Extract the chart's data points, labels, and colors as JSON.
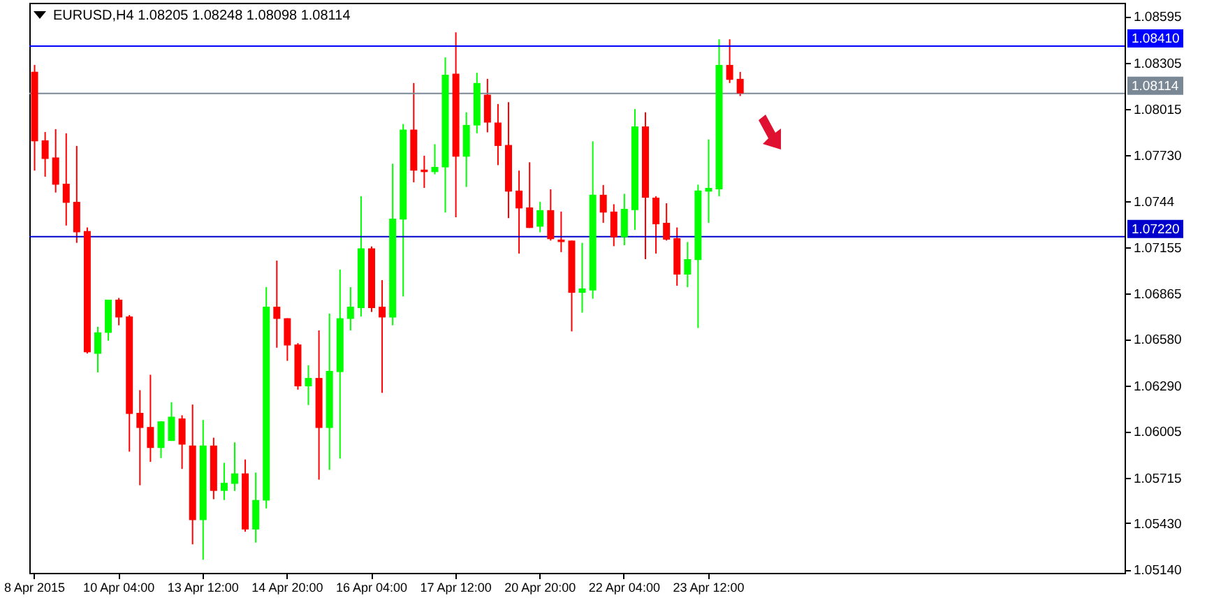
{
  "chart_data": {
    "type": "candlestick",
    "title": "EURUSD,H4  1.08205 1.08248 1.08098 1.08114",
    "categories": [
      "8 Apr 2015",
      null,
      null,
      null,
      null,
      null,
      null,
      null,
      "10 Apr 04:00",
      null,
      null,
      null,
      null,
      null,
      null,
      null,
      "13 Apr 12:00",
      null,
      null,
      null,
      null,
      null,
      null,
      null,
      "14 Apr 20:00",
      null,
      null,
      null,
      null,
      null,
      null,
      null,
      "16 Apr 04:00",
      null,
      null,
      null,
      null,
      null,
      null,
      null,
      "17 Apr 12:00",
      null,
      null,
      null,
      null,
      null,
      null,
      null,
      "20 Apr 20:00",
      null,
      null,
      null,
      null,
      null,
      null,
      null,
      "22 Apr 04:00",
      null,
      null,
      null,
      null,
      null,
      null,
      null,
      "23 Apr 12:00",
      null,
      null,
      null,
      null,
      null,
      null,
      null,
      null,
      null,
      null,
      null,
      null,
      null,
      null,
      null,
      null,
      null,
      null,
      null,
      null,
      null,
      null,
      null,
      null,
      null,
      null,
      null,
      null,
      null,
      null,
      null,
      null,
      null,
      null,
      null,
      null,
      null,
      null,
      null
    ],
    "ohlc": [
      [
        1.08249,
        1.08292,
        1.07632,
        1.07815
      ],
      [
        1.07821,
        1.07873,
        1.07594,
        1.07705
      ],
      [
        1.07714,
        1.07891,
        1.07495,
        1.07544
      ],
      [
        1.0755,
        1.07865,
        1.07289,
        1.07431
      ],
      [
        1.07437,
        1.07786,
        1.07181,
        1.07247
      ],
      [
        1.07254,
        1.07277,
        1.0649,
        1.06497
      ],
      [
        1.06488,
        1.06657,
        1.06372,
        1.06622
      ],
      [
        1.06619,
        1.06826,
        1.0657,
        1.06826
      ],
      [
        1.06826,
        1.06837,
        1.06666,
        1.06715
      ],
      [
        1.06721,
        1.0673,
        1.05877,
        1.06113
      ],
      [
        1.06119,
        1.06261,
        1.05667,
        1.06025
      ],
      [
        1.06031,
        1.06357,
        1.05813,
        1.059
      ],
      [
        1.059,
        1.06066,
        1.05837,
        1.06066
      ],
      [
        1.05944,
        1.06186,
        1.05944,
        1.06095
      ],
      [
        1.06084,
        1.06104,
        1.05769,
        1.05921
      ],
      [
        1.05915,
        1.06171,
        1.05298,
        1.05449
      ],
      [
        1.05449,
        1.06075,
        1.05202,
        1.05915
      ],
      [
        1.05915,
        1.05964,
        1.0558,
        1.05632
      ],
      [
        1.05632,
        1.05807,
        1.05575,
        1.05682
      ],
      [
        1.05676,
        1.05935,
        1.05632,
        1.05741
      ],
      [
        1.05741,
        1.05828,
        1.05377,
        1.05391
      ],
      [
        1.05391,
        1.05746,
        1.05309,
        1.05575
      ],
      [
        1.05571,
        1.06904,
        1.05522,
        1.06782
      ],
      [
        1.06782,
        1.0707,
        1.06526,
        1.06706
      ],
      [
        1.0671,
        1.0671,
        1.06444,
        1.0654
      ],
      [
        1.06546,
        1.06555,
        1.06264,
        1.06285
      ],
      [
        1.06285,
        1.06416,
        1.06168,
        1.06337
      ],
      [
        1.06337,
        1.06634,
        1.05702,
        1.06025
      ],
      [
        1.06025,
        1.06739,
        1.05763,
        1.06381
      ],
      [
        1.06374,
        1.07015,
        1.05833,
        1.0671
      ],
      [
        1.06706,
        1.06904,
        1.06634,
        1.06782
      ],
      [
        1.06773,
        1.07472,
        1.06721,
        1.07146
      ],
      [
        1.07146,
        1.07158,
        1.0675,
        1.06773
      ],
      [
        1.06782,
        1.06948,
        1.06244,
        1.06715
      ],
      [
        1.06715,
        1.07675,
        1.06666,
        1.07332
      ],
      [
        1.07326,
        1.07923,
        1.06846,
        1.07888
      ],
      [
        1.07888,
        1.08179,
        1.07559,
        1.07632
      ],
      [
        1.07638,
        1.07725,
        1.07524,
        1.07623
      ],
      [
        1.07623,
        1.07797,
        1.07609,
        1.07655
      ],
      [
        1.07653,
        1.08339,
        1.0737,
        1.08231
      ],
      [
        1.08237,
        1.08496,
        1.07341,
        1.07719
      ],
      [
        1.07719,
        1.07996,
        1.0753,
        1.07917
      ],
      [
        1.07914,
        1.08243,
        1.07865,
        1.08179
      ],
      [
        1.08106,
        1.08205,
        1.07871,
        1.07932
      ],
      [
        1.07932,
        1.08048,
        1.07666,
        1.07786
      ],
      [
        1.07792,
        1.08059,
        1.07335,
        1.07501
      ],
      [
        1.07507,
        1.07632,
        1.07114,
        1.07396
      ],
      [
        1.07402,
        1.07684,
        1.07274,
        1.07274
      ],
      [
        1.07282,
        1.07437,
        1.07247,
        1.07385
      ],
      [
        1.07385,
        1.07515,
        1.07195,
        1.07204
      ],
      [
        1.07201,
        1.07376,
        1.07123,
        1.07186
      ],
      [
        1.07195,
        1.07195,
        1.06628,
        1.06869
      ],
      [
        1.06869,
        1.07181,
        1.06745,
        1.06896
      ],
      [
        1.06884,
        1.07815,
        1.06832,
        1.07481
      ],
      [
        1.07481,
        1.07542,
        1.07306,
        1.0737
      ],
      [
        1.07376,
        1.07422,
        1.0716,
        1.07216
      ],
      [
        1.07216,
        1.07487,
        1.07166,
        1.07393
      ],
      [
        1.07385,
        1.08016,
        1.07262,
        1.07908
      ],
      [
        1.07908,
        1.07996,
        1.07079,
        1.07463
      ],
      [
        1.07463,
        1.07472,
        1.07114,
        1.07297
      ],
      [
        1.07306,
        1.07428,
        1.07195,
        1.07201
      ],
      [
        1.0721,
        1.07277,
        1.06913,
        1.06983
      ],
      [
        1.06983,
        1.07186,
        1.06904,
        1.07079
      ],
      [
        1.07073,
        1.07544,
        1.06649,
        1.07507
      ],
      [
        1.07501,
        1.07827,
        1.07306,
        1.07524
      ],
      [
        1.07515,
        1.08452,
        1.07472,
        1.08292
      ],
      [
        1.08292,
        1.08452,
        1.08179,
        1.08199
      ],
      [
        1.08205,
        1.08248,
        1.08098,
        1.08114
      ],
      null,
      null,
      null,
      null,
      null,
      null,
      null,
      null,
      null,
      null,
      null,
      null,
      null,
      null,
      null,
      null,
      null,
      null,
      null,
      null,
      null,
      null,
      null,
      null,
      null,
      null,
      null,
      null,
      null,
      null,
      null,
      null,
      null,
      null,
      null,
      null
    ],
    "colors": [
      "#ff0000",
      "#ff0000",
      "#ff0000",
      "#ff0000",
      "#ff0000",
      "#ff0000",
      "#00ff00",
      "#00ff00",
      "#ff0000",
      "#ff0000",
      "#ff0000",
      "#ff0000",
      "#00ff00",
      "#00ff00",
      "#ff0000",
      "#ff0000",
      "#00ff00",
      "#ff0000",
      "#00ff00",
      "#00ff00",
      "#ff0000",
      "#00ff00",
      "#00ff00",
      "#ff0000",
      "#ff0000",
      "#ff0000",
      "#00ff00",
      "#ff0000",
      "#00ff00",
      "#00ff00",
      "#00ff00",
      "#00ff00",
      "#ff0000",
      "#ff0000",
      "#00ff00",
      "#00ff00",
      "#ff0000",
      "#ff0000",
      "#00ff00",
      "#00ff00",
      "#ff0000",
      "#00ff00",
      "#00ff00",
      "#ff0000",
      "#ff0000",
      "#ff0000",
      "#ff0000",
      "#ff0000",
      "#00ff00",
      "#ff0000",
      "#ff0000",
      "#ff0000",
      "#00ff00",
      "#00ff00",
      "#ff0000",
      "#ff0000",
      "#00ff00",
      "#00ff00",
      "#ff0000",
      "#ff0000",
      "#ff0000",
      "#ff0000",
      "#00ff00",
      "#00ff00",
      "#00ff00",
      "#00ff00",
      "#ff0000",
      "#ff0000",
      null,
      null,
      null,
      null,
      null,
      null,
      null,
      null,
      null,
      null,
      null,
      null,
      null,
      null,
      null,
      null,
      null,
      null,
      null,
      null,
      null,
      null,
      null,
      null,
      null,
      null,
      null,
      null,
      null,
      null,
      null,
      null,
      null,
      null,
      null,
      null
    ],
    "ylim": [
      1.0512,
      1.0868
    ],
    "yticks": [
      1.08595,
      1.08305,
      1.08015,
      {
        "value": 1.0773,
        "label": "1.07730"
      },
      1.0744,
      1.07155,
      1.06865,
      {
        "value": 1.0658,
        "label": "1.06580"
      },
      {
        "value": 1.0629,
        "label": "1.06290"
      },
      1.06005,
      1.05715,
      {
        "value": 1.0543,
        "label": "1.05430"
      },
      {
        "value": 1.0514,
        "label": "1.05140"
      }
    ],
    "ref_lines": [
      {
        "axis": "y",
        "value": 1.0841,
        "label": "1.08410",
        "color": "#0000ff"
      },
      {
        "axis": "y",
        "value": 1.08114,
        "label": "1.08114",
        "color": "#7a8896"
      },
      {
        "axis": "y",
        "value": 1.0722,
        "label": "1.07220",
        "color": "#0000cc"
      }
    ]
  }
}
